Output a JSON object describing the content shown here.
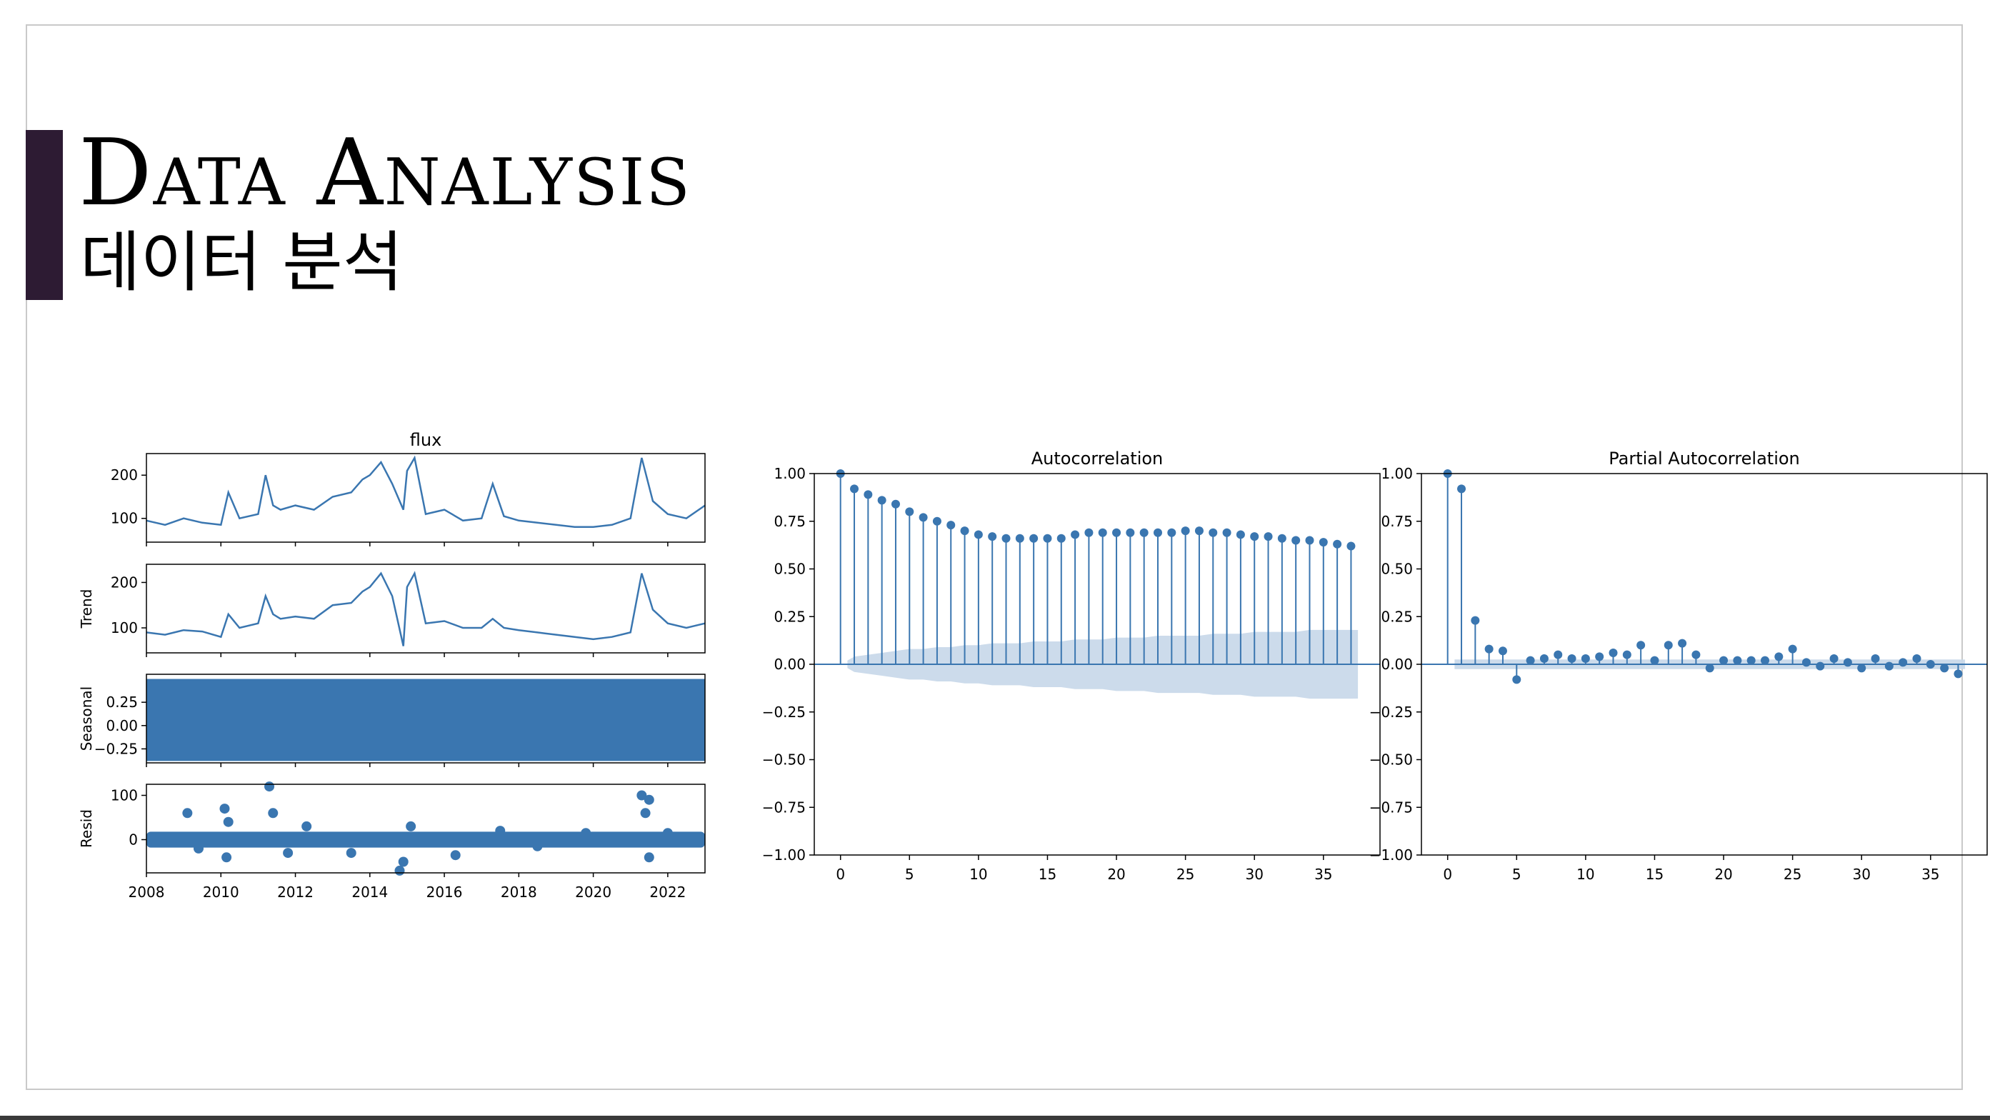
{
  "slide": {
    "title_en": "Data Analysis",
    "title_ko": "데이터 분석",
    "colors": {
      "accent": "#2d1b33",
      "series": "#3a76b0",
      "confidence_band": "#c9d9ea"
    }
  },
  "chart_data": [
    {
      "type": "line",
      "figure": "seasonal_decomposition",
      "title": "flux",
      "x_ticks": [
        "2008",
        "2010",
        "2012",
        "2014",
        "2016",
        "2018",
        "2020",
        "2022"
      ],
      "xlim": [
        2008,
        2023
      ],
      "panels": [
        {
          "name": "observed",
          "ylabel": "",
          "yticks": [
            "200",
            "100"
          ],
          "ylim": [
            45,
            250
          ],
          "points": [
            [
              2008.0,
              95
            ],
            [
              2008.5,
              85
            ],
            [
              2009.0,
              100
            ],
            [
              2009.5,
              90
            ],
            [
              2010.0,
              85
            ],
            [
              2010.2,
              160
            ],
            [
              2010.5,
              100
            ],
            [
              2011.0,
              110
            ],
            [
              2011.2,
              200
            ],
            [
              2011.4,
              130
            ],
            [
              2011.6,
              120
            ],
            [
              2012.0,
              130
            ],
            [
              2012.5,
              120
            ],
            [
              2013.0,
              150
            ],
            [
              2013.5,
              160
            ],
            [
              2013.8,
              190
            ],
            [
              2014.0,
              200
            ],
            [
              2014.3,
              230
            ],
            [
              2014.6,
              180
            ],
            [
              2014.9,
              120
            ],
            [
              2015.0,
              210
            ],
            [
              2015.2,
              240
            ],
            [
              2015.5,
              110
            ],
            [
              2016.0,
              120
            ],
            [
              2016.5,
              95
            ],
            [
              2017.0,
              100
            ],
            [
              2017.3,
              180
            ],
            [
              2017.6,
              105
            ],
            [
              2018.0,
              95
            ],
            [
              2018.5,
              90
            ],
            [
              2019.0,
              85
            ],
            [
              2019.5,
              80
            ],
            [
              2020.0,
              80
            ],
            [
              2020.5,
              85
            ],
            [
              2021.0,
              100
            ],
            [
              2021.3,
              240
            ],
            [
              2021.6,
              140
            ],
            [
              2022.0,
              110
            ],
            [
              2022.5,
              100
            ],
            [
              2023.0,
              130
            ]
          ]
        },
        {
          "name": "trend",
          "ylabel": "Trend",
          "yticks": [
            "200",
            "100"
          ],
          "ylim": [
            45,
            240
          ],
          "points": [
            [
              2008.0,
              90
            ],
            [
              2008.5,
              85
            ],
            [
              2009.0,
              95
            ],
            [
              2009.5,
              92
            ],
            [
              2010.0,
              80
            ],
            [
              2010.2,
              130
            ],
            [
              2010.5,
              100
            ],
            [
              2011.0,
              110
            ],
            [
              2011.2,
              170
            ],
            [
              2011.4,
              130
            ],
            [
              2011.6,
              120
            ],
            [
              2012.0,
              125
            ],
            [
              2012.5,
              120
            ],
            [
              2013.0,
              150
            ],
            [
              2013.5,
              155
            ],
            [
              2013.8,
              180
            ],
            [
              2014.0,
              190
            ],
            [
              2014.3,
              220
            ],
            [
              2014.6,
              170
            ],
            [
              2014.9,
              60
            ],
            [
              2015.0,
              190
            ],
            [
              2015.2,
              220
            ],
            [
              2015.5,
              110
            ],
            [
              2016.0,
              115
            ],
            [
              2016.5,
              100
            ],
            [
              2017.0,
              100
            ],
            [
              2017.3,
              120
            ],
            [
              2017.6,
              100
            ],
            [
              2018.0,
              95
            ],
            [
              2018.5,
              90
            ],
            [
              2019.0,
              85
            ],
            [
              2019.5,
              80
            ],
            [
              2020.0,
              75
            ],
            [
              2020.5,
              80
            ],
            [
              2021.0,
              90
            ],
            [
              2021.3,
              220
            ],
            [
              2021.6,
              140
            ],
            [
              2022.0,
              110
            ],
            [
              2022.5,
              100
            ],
            [
              2023.0,
              110
            ]
          ]
        },
        {
          "name": "seasonal",
          "ylabel": "Seasonal",
          "yticks": [
            "0.25",
            "0.00",
            "−0.25"
          ],
          "ylim": [
            -0.4,
            0.55
          ],
          "fill_range": [
            -0.38,
            0.5
          ]
        },
        {
          "name": "residual",
          "ylabel": "Resid",
          "yticks": [
            "100",
            "0"
          ],
          "ylim": [
            -75,
            125
          ],
          "points": [
            [
              2009.1,
              60
            ],
            [
              2009.4,
              -20
            ],
            [
              2010.1,
              70
            ],
            [
              2010.2,
              40
            ],
            [
              2010.15,
              -40
            ],
            [
              2011.3,
              120
            ],
            [
              2011.4,
              60
            ],
            [
              2011.8,
              -30
            ],
            [
              2012.3,
              30
            ],
            [
              2013.5,
              -30
            ],
            [
              2014.8,
              -70
            ],
            [
              2014.9,
              -50
            ],
            [
              2015.1,
              30
            ],
            [
              2016.3,
              -35
            ],
            [
              2017.5,
              20
            ],
            [
              2018.5,
              -15
            ],
            [
              2019.8,
              15
            ],
            [
              2021.3,
              100
            ],
            [
              2021.5,
              90
            ],
            [
              2021.4,
              60
            ],
            [
              2021.5,
              -40
            ],
            [
              2022.0,
              15
            ]
          ]
        }
      ]
    },
    {
      "type": "bar",
      "figure": "acf",
      "title": "Autocorrelation",
      "xlim": [
        -1.9,
        39.1
      ],
      "ylim": [
        -1.0,
        1.0
      ],
      "x_ticks": [
        "0",
        "5",
        "10",
        "15",
        "20",
        "25",
        "30",
        "35"
      ],
      "y_ticks": [
        "1.00",
        "0.75",
        "0.50",
        "0.25",
        "0.00",
        "−0.25",
        "−0.50",
        "−0.75",
        "−1.00"
      ],
      "lags": [
        0,
        1,
        2,
        3,
        4,
        5,
        6,
        7,
        8,
        9,
        10,
        11,
        12,
        13,
        14,
        15,
        16,
        17,
        18,
        19,
        20,
        21,
        22,
        23,
        24,
        25,
        26,
        27,
        28,
        29,
        30,
        31,
        32,
        33,
        34,
        35,
        36,
        37
      ],
      "values": [
        1.0,
        0.92,
        0.89,
        0.86,
        0.84,
        0.8,
        0.77,
        0.75,
        0.73,
        0.7,
        0.68,
        0.67,
        0.66,
        0.66,
        0.66,
        0.66,
        0.66,
        0.68,
        0.69,
        0.69,
        0.69,
        0.69,
        0.69,
        0.69,
        0.69,
        0.7,
        0.7,
        0.69,
        0.69,
        0.68,
        0.67,
        0.67,
        0.66,
        0.65,
        0.65,
        0.64,
        0.63,
        0.62
      ],
      "confidence_band": [
        0.02,
        0.04,
        0.05,
        0.06,
        0.07,
        0.08,
        0.08,
        0.09,
        0.09,
        0.1,
        0.1,
        0.11,
        0.11,
        0.11,
        0.12,
        0.12,
        0.12,
        0.13,
        0.13,
        0.13,
        0.14,
        0.14,
        0.14,
        0.15,
        0.15,
        0.15,
        0.15,
        0.16,
        0.16,
        0.16,
        0.17,
        0.17,
        0.17,
        0.17,
        0.18,
        0.18,
        0.18,
        0.18
      ]
    },
    {
      "type": "bar",
      "figure": "pacf",
      "title": "Partial Autocorrelation",
      "xlim": [
        -1.9,
        39.1
      ],
      "ylim": [
        -1.0,
        1.0
      ],
      "x_ticks": [
        "0",
        "5",
        "10",
        "15",
        "20",
        "25",
        "30",
        "35"
      ],
      "y_ticks": [
        "1.00",
        "0.75",
        "0.50",
        "0.25",
        "0.00",
        "−0.25",
        "−0.50",
        "−0.75",
        "−1.00"
      ],
      "lags": [
        0,
        1,
        2,
        3,
        4,
        5,
        6,
        7,
        8,
        9,
        10,
        11,
        12,
        13,
        14,
        15,
        16,
        17,
        18,
        19,
        20,
        21,
        22,
        23,
        24,
        25,
        26,
        27,
        28,
        29,
        30,
        31,
        32,
        33,
        34,
        35,
        36,
        37
      ],
      "values": [
        1.0,
        0.92,
        0.23,
        0.08,
        0.07,
        -0.08,
        0.02,
        0.03,
        0.05,
        0.03,
        0.03,
        0.04,
        0.06,
        0.05,
        0.1,
        0.02,
        0.1,
        0.11,
        0.05,
        -0.02,
        0.02,
        0.02,
        0.02,
        0.02,
        0.04,
        0.08,
        0.01,
        -0.01,
        0.03,
        0.01,
        -0.02,
        0.03,
        -0.01,
        0.01,
        0.03,
        0.0,
        -0.02,
        -0.05
      ],
      "confidence_band": 0.025
    }
  ]
}
